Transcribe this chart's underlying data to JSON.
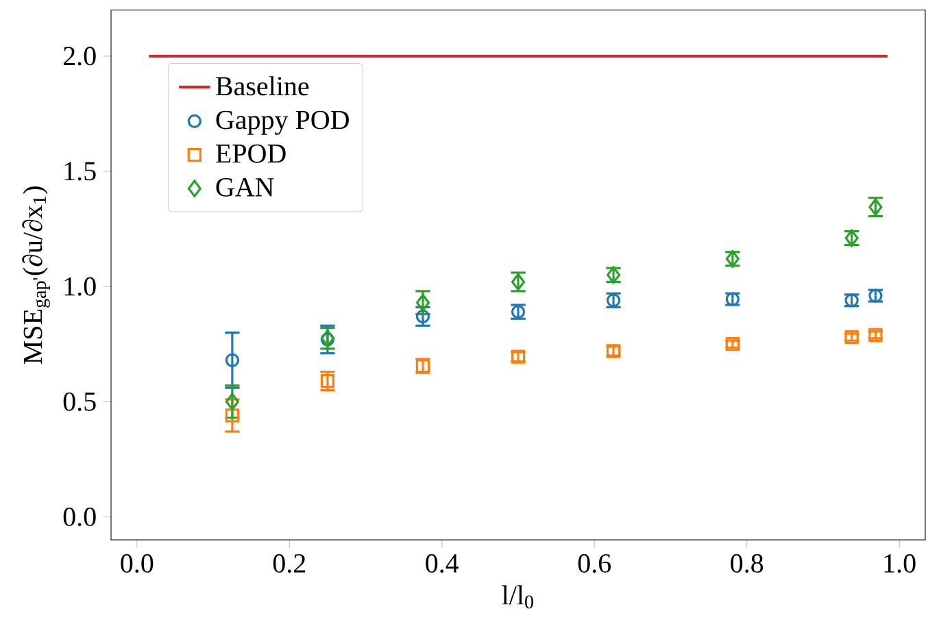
{
  "chart_data": {
    "type": "scatter",
    "xlabel": "l/l$_{0}$",
    "ylabel": "MSE$_{gap'}$(∂u/∂x$_{1}$)",
    "xlim": [
      -0.034,
      1.034
    ],
    "ylim": [
      -0.1,
      2.2
    ],
    "xticks": [
      {
        "value": 0,
        "label": "0.0"
      },
      {
        "value": 0.2,
        "label": "0.2"
      },
      {
        "value": 0.4,
        "label": "0.4"
      },
      {
        "value": 0.6,
        "label": "0.6"
      },
      {
        "value": 0.8,
        "label": "0.8"
      },
      {
        "value": 1,
        "label": "1.0"
      }
    ],
    "yticks": [
      {
        "value": 0,
        "label": "0.0"
      },
      {
        "value": 0.5,
        "label": "0.5"
      },
      {
        "value": 1,
        "label": "1.0"
      },
      {
        "value": 1.5,
        "label": "1.5"
      },
      {
        "value": 2,
        "label": "2.0"
      }
    ],
    "grid": false,
    "legend": "top left",
    "x": [
      0.125,
      0.25,
      0.375,
      0.5,
      0.625,
      0.78125,
      0.9375,
      0.96875
    ],
    "series": [
      {
        "name": "Baseline",
        "type": "line",
        "color": "#d62728",
        "x": [
          0.015625,
          0.984375
        ],
        "values": [
          2.0,
          2.0
        ],
        "marker": "none",
        "line_style": "solid"
      },
      {
        "name": "Gappy POD",
        "color": "#1f77b4",
        "marker": "circle",
        "values": [
          0.68,
          0.77,
          0.87,
          0.89,
          0.94,
          0.945,
          0.94,
          0.96
        ],
        "errors": [
          0.12,
          0.06,
          0.04,
          0.03,
          0.03,
          0.025,
          0.025,
          0.025
        ]
      },
      {
        "name": "EPOD",
        "color": "#ff7f0e",
        "marker": "square",
        "values": [
          0.44,
          0.59,
          0.655,
          0.695,
          0.72,
          0.75,
          0.78,
          0.79
        ],
        "errors": [
          0.07,
          0.04,
          0.03,
          0.02,
          0.02,
          0.015,
          0.015,
          0.015
        ]
      },
      {
        "name": "GAN",
        "color": "#2ca02c",
        "marker": "diamond",
        "values": [
          0.5,
          0.775,
          0.93,
          1.02,
          1.05,
          1.12,
          1.21,
          1.345
        ],
        "errors": [
          0.07,
          0.045,
          0.05,
          0.04,
          0.03,
          0.03,
          0.03,
          0.04
        ]
      }
    ]
  }
}
